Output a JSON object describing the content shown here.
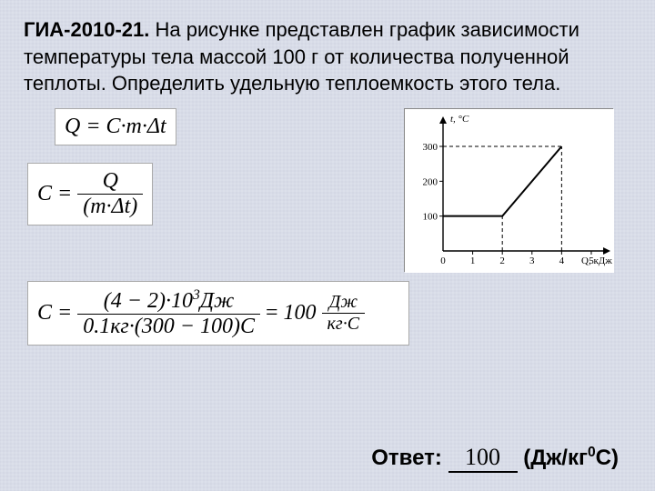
{
  "title_bold": "ГИА-2010-21.",
  "title_rest": " На рисунке представлен график зависимости температуры тела массой 100 г от количества полученной теплоты. Определить удельную теплоемкость этого тела.",
  "eq1_lhs": "Q =",
  "eq1_rhs": "С·m·Δt",
  "eq2_lhs": "C =",
  "eq2_num": "Q",
  "eq2_den": "(m·Δt)",
  "eq3_lhs": "C =",
  "eq3_num": "(4 − 2)·10",
  "eq3_num_exp": "3",
  "eq3_num_unit": "Дж",
  "eq3_den": "0.1кг·(300 − 100)С",
  "eq3_mid": " = ",
  "eq3_result": "100",
  "eq3_result_unit_num": "Дж",
  "eq3_result_unit_den": "кг·С",
  "chart": {
    "type": "line",
    "x_axis_label": "Q, кДж",
    "y_axis_label": "t, °C",
    "x_ticks": [
      0,
      1,
      2,
      3,
      4,
      5
    ],
    "y_ticks": [
      100,
      200,
      300
    ],
    "xlim": [
      0,
      5.4
    ],
    "ylim": [
      0,
      360
    ],
    "line_points": [
      [
        0,
        100
      ],
      [
        2,
        100
      ],
      [
        4,
        300
      ]
    ],
    "guide_lines": [
      {
        "from": [
          0,
          100
        ],
        "to": [
          2,
          100
        ]
      },
      {
        "from": [
          2,
          0
        ],
        "to": [
          2,
          100
        ]
      },
      {
        "from": [
          0,
          300
        ],
        "to": [
          4,
          300
        ]
      },
      {
        "from": [
          4,
          0
        ],
        "to": [
          4,
          300
        ]
      }
    ],
    "line_color": "#000000",
    "guide_color": "#000000",
    "axis_color": "#000000",
    "background_color": "#ffffff",
    "label_fontsize": 11,
    "tick_fontsize": 11,
    "line_width": 2,
    "guide_dash": "4,3"
  },
  "answer_label": "Ответ: ",
  "answer_value": "100",
  "answer_unit_pre": "(Дж/кг",
  "answer_unit_exp": "0",
  "answer_unit_post": "С)"
}
